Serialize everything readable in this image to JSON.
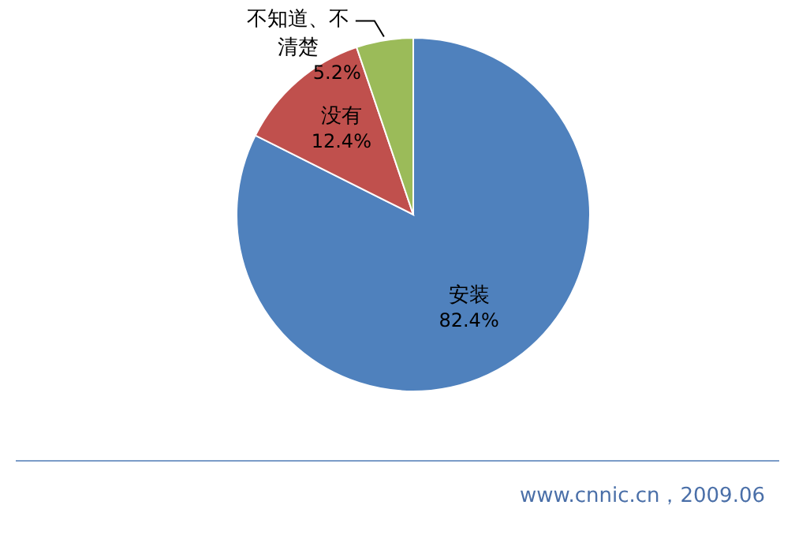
{
  "chart_data": {
    "type": "pie",
    "categories": [
      "安装",
      "没有",
      "不知道、不清楚"
    ],
    "values": [
      82.4,
      12.4,
      5.2
    ],
    "colors": [
      "#4f81bd",
      "#c0504d",
      "#9bbb59"
    ],
    "value_labels": [
      "82.4%",
      "12.4%",
      "5.2%"
    ],
    "annotations": [
      "www.cnnic.cn，2009.06"
    ]
  }
}
